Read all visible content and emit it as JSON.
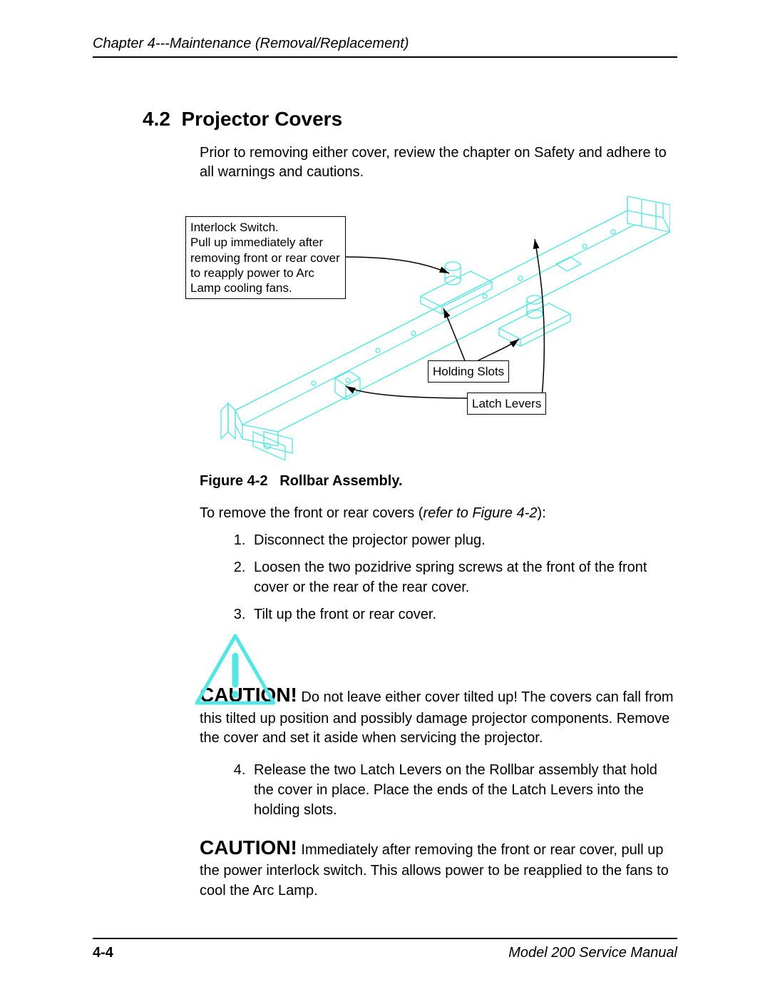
{
  "colors": {
    "diagram_stroke": "#55e5e5",
    "text": "#000000",
    "background": "#ffffff",
    "callout_border": "#000000",
    "arrow": "#000000"
  },
  "fonts": {
    "body_size_pt": 15,
    "heading_size_pt": 21,
    "caution_size_pt": 21,
    "callout_size_pt": 13
  },
  "header": {
    "running_head": "Chapter 4---Maintenance (Removal/Replacement)"
  },
  "section": {
    "number": "4.2",
    "title": "Projector Covers",
    "intro": "Prior to removing either cover, review the chapter on Safety and adhere to all warnings and cautions."
  },
  "figure": {
    "caption_label": "Figure 4-2",
    "caption_title": "Rollbar Assembly.",
    "callouts": {
      "interlock": "Interlock Switch.\nPull up immediately after removing front or rear cover to reapply power to Arc Lamp cooling fans.",
      "holding_slots": "Holding Slots",
      "latch_levers": "Latch Levers"
    }
  },
  "procedure": {
    "lead_in_prefix": "To remove the front or rear covers (",
    "lead_in_ref": "refer to Figure 4-2",
    "lead_in_suffix": "):",
    "steps_1_3": [
      "Disconnect the projector power plug.",
      "Loosen the two pozidrive spring screws at the front of the front cover or the rear of the rear cover.",
      "Tilt up the front or rear cover."
    ],
    "step_4": "Release the two Latch Levers on the Rollbar assembly that hold the cover in place. Place the ends of the Latch Levers into the holding slots."
  },
  "caution1": {
    "word": "CAUTION!",
    "text": " Do not leave either cover tilted up! The covers can fall from this tilted up position and possibly damage projector components. Remove the cover and set it aside when servicing the projector."
  },
  "caution2": {
    "word": "CAUTION!",
    "text": " Immediately after removing the front or rear cover, pull up the power interlock switch. This allows power to be reapplied to the fans to cool the Arc Lamp."
  },
  "footer": {
    "page": "4-4",
    "manual": "Model 200 Service Manual"
  }
}
